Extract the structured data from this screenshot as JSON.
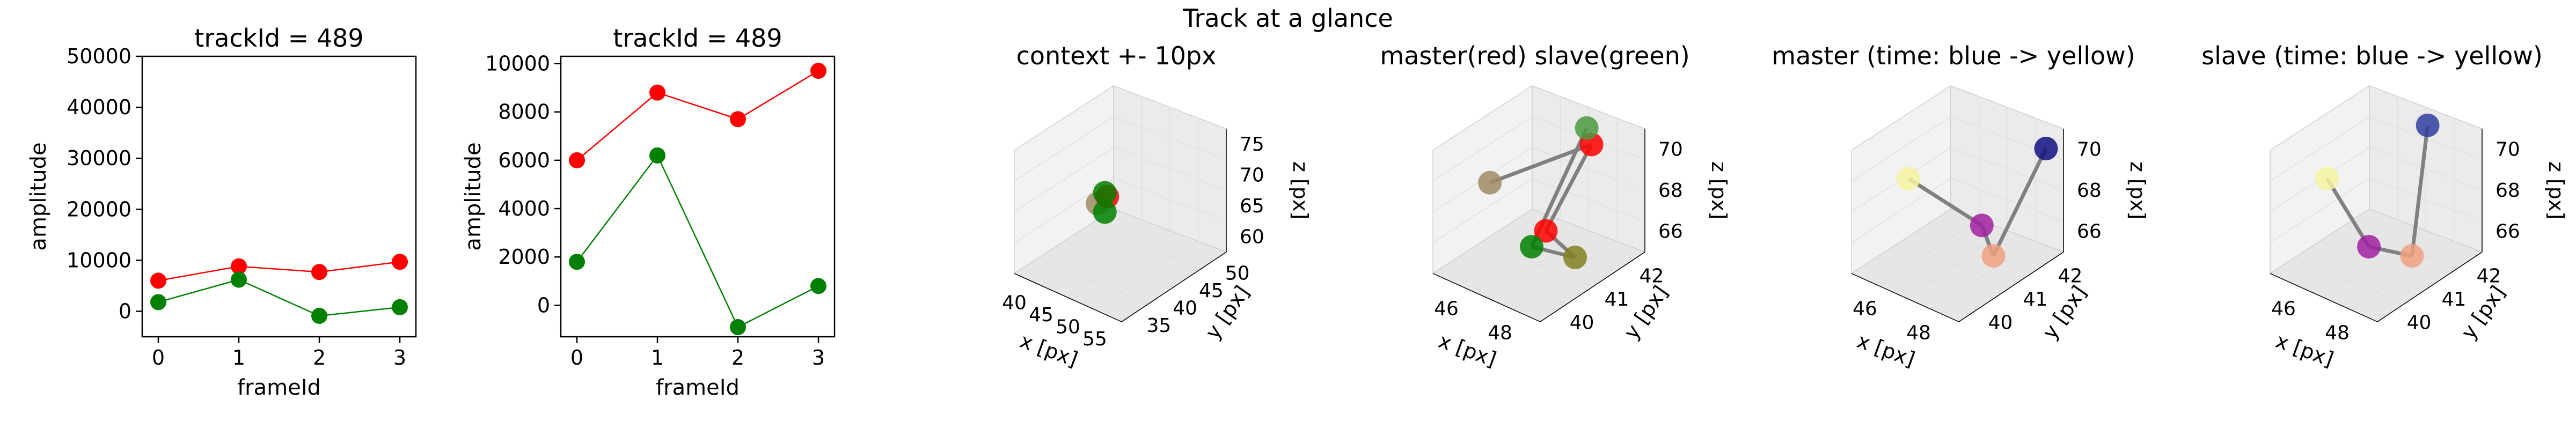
{
  "figure": {
    "suptitle": "Track at a glance"
  },
  "chart_data": [
    {
      "type": "line",
      "title": "trackId = 489",
      "xlabel": "frameId",
      "ylabel": "amplitude",
      "x": [
        0,
        1,
        2,
        3
      ],
      "xticks": [
        "0",
        "1",
        "2",
        "3"
      ],
      "yticks": [
        "0",
        "10000",
        "20000",
        "30000",
        "40000",
        "50000"
      ],
      "ylim": [
        -5000,
        50000
      ],
      "xlim": [
        -0.2,
        3.2
      ],
      "series": [
        {
          "color": "#ff0000",
          "values": [
            6000,
            8800,
            7700,
            9700
          ]
        },
        {
          "color": "#008000",
          "values": [
            1800,
            6200,
            -900,
            800
          ]
        }
      ]
    },
    {
      "type": "line",
      "title": "trackId = 489",
      "xlabel": "frameId",
      "ylabel": "amplitude",
      "x": [
        0,
        1,
        2,
        3
      ],
      "xticks": [
        "0",
        "1",
        "2",
        "3"
      ],
      "yticks": [
        "0",
        "2000",
        "4000",
        "6000",
        "8000",
        "10000"
      ],
      "ylim": [
        -1300,
        10300
      ],
      "xlim": [
        -0.2,
        3.2
      ],
      "series": [
        {
          "color": "#ff0000",
          "values": [
            6000,
            8800,
            7700,
            9700
          ]
        },
        {
          "color": "#008000",
          "values": [
            1800,
            6200,
            -900,
            800
          ]
        }
      ]
    },
    {
      "type": "scatter",
      "title": "context +- 10px",
      "xlabel": "x [px]",
      "ylabel": "y [px]",
      "zlabel": "z [px]",
      "xticks": [
        "40",
        "45",
        "50",
        "55"
      ],
      "yticks": [
        "35",
        "40",
        "45",
        "50"
      ],
      "zticks": [
        "60",
        "65",
        "70",
        "75"
      ],
      "points": [
        {
          "x": 44.5,
          "y": 41,
          "z": 67,
          "color": "#a08c64"
        },
        {
          "x": 46.5,
          "y": 41,
          "z": 69,
          "color": "#ff0000"
        },
        {
          "x": 46,
          "y": 41,
          "z": 69.5,
          "color": "#008000"
        },
        {
          "x": 46,
          "y": 41,
          "z": 66,
          "color": "#008000"
        }
      ]
    },
    {
      "type": "scatter",
      "title": "master(red) slave(green)",
      "xlabel": "x [px]",
      "ylabel": "y [px]",
      "zlabel": "z [px]",
      "xticks": [
        "46",
        "48"
      ],
      "yticks": [
        "40",
        "41",
        "42"
      ],
      "zticks": [
        "66",
        "68",
        "70"
      ],
      "points": [
        {
          "x": 45.7,
          "y": 41.0,
          "z": 68.0,
          "color": "#a08c64"
        },
        {
          "x": 48.0,
          "y": 41.5,
          "z": 71.0,
          "color": "#ff0000"
        },
        {
          "x": 47.6,
          "y": 40.6,
          "z": 67.5,
          "color": "#ff0000"
        },
        {
          "x": 48.5,
          "y": 40.5,
          "z": 67.0,
          "color": "#808020"
        },
        {
          "x": 47.4,
          "y": 40.4,
          "z": 66.8,
          "color": "#008000"
        },
        {
          "x": 47.5,
          "y": 41.9,
          "z": 71.0,
          "color": "#4c9a40"
        }
      ]
    },
    {
      "type": "scatter",
      "title": "master (time: blue -> yellow)",
      "xlabel": "x [px]",
      "ylabel": "y [px]",
      "zlabel": "z [px]",
      "xticks": [
        "46",
        "48"
      ],
      "yticks": [
        "40",
        "41",
        "42"
      ],
      "zticks": [
        "66",
        "68",
        "70"
      ],
      "points": [
        {
          "x": 45.7,
          "y": 41.0,
          "z": 68.2,
          "color": "#f5f5a0"
        },
        {
          "x": 47.7,
          "y": 41.0,
          "z": 67.4,
          "color": "#a020a0"
        },
        {
          "x": 48.3,
          "y": 40.7,
          "z": 66.7,
          "color": "#f0a080"
        },
        {
          "x": 48.5,
          "y": 42.0,
          "z": 70.6,
          "color": "#101080"
        }
      ]
    },
    {
      "type": "scatter",
      "title": "slave (time: blue -> yellow)",
      "xlabel": "x [px]",
      "ylabel": "y [px]",
      "zlabel": "z [px]",
      "xticks": [
        "46",
        "48"
      ],
      "yticks": [
        "40",
        "41",
        "42"
      ],
      "zticks": [
        "66",
        "68",
        "70"
      ],
      "points": [
        {
          "x": 45.7,
          "y": 41.0,
          "z": 68.2,
          "color": "#f5f5a0"
        },
        {
          "x": 47.4,
          "y": 40.4,
          "z": 66.8,
          "color": "#a020a0"
        },
        {
          "x": 48.3,
          "y": 40.7,
          "z": 66.7,
          "color": "#f0a080"
        },
        {
          "x": 47.6,
          "y": 41.9,
          "z": 71.2,
          "color": "#3040a0"
        }
      ]
    }
  ]
}
